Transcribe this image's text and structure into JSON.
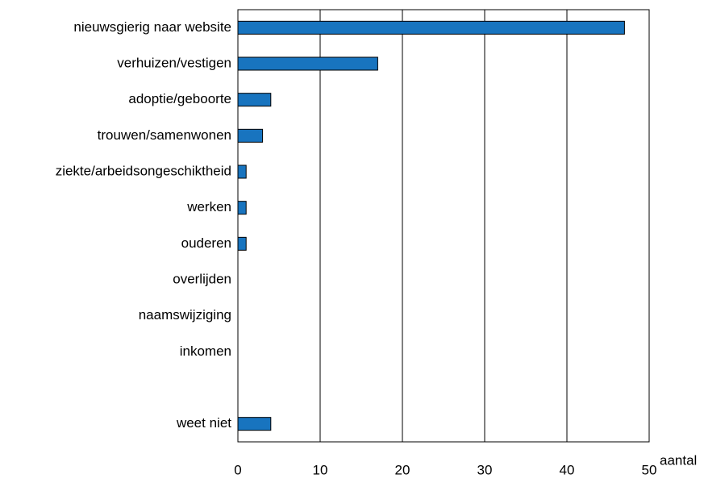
{
  "chart_data": {
    "type": "hbar",
    "categories": [
      "nieuwsgierig naar website",
      "verhuizen/vestigen",
      "adoptie/geboorte",
      "trouwen/samenwonen",
      "ziekte/arbeidsongeschiktheid",
      "werken",
      "ouderen",
      "overlijden",
      "naamswijziging",
      "inkomen",
      null,
      "weet niet"
    ],
    "values": [
      47,
      17,
      4,
      3,
      1,
      1,
      1,
      0,
      0,
      0,
      null,
      4
    ],
    "color": "#1874bf",
    "xlabel": "aantal",
    "xlim": [
      0,
      50
    ],
    "xticks": [
      0,
      10,
      20,
      30,
      40,
      50
    ],
    "grid": true
  }
}
